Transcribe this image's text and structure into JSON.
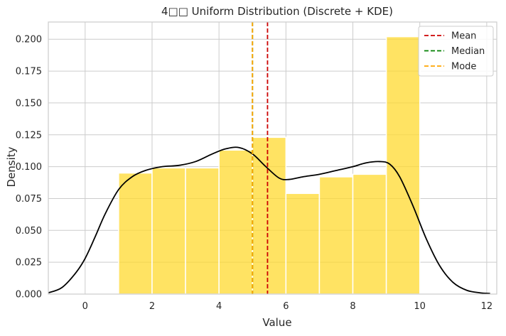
{
  "chart_data": {
    "type": "bar",
    "title": "4□□ Uniform Distribution (Discrete + KDE)",
    "xlabel": "Value",
    "ylabel": "Density",
    "xlim": [
      -1.1,
      12.3
    ],
    "ylim": [
      0,
      0.2135
    ],
    "xticks": [
      0,
      2,
      4,
      6,
      8,
      10,
      12
    ],
    "yticks": [
      0.0,
      0.025,
      0.05,
      0.075,
      0.1,
      0.125,
      0.15,
      0.175,
      0.2
    ],
    "ytick_labels": [
      "0.000",
      "0.025",
      "0.050",
      "0.075",
      "0.100",
      "0.125",
      "0.150",
      "0.175",
      "0.200"
    ],
    "grid": true,
    "legend_position": "top-right",
    "bar_color": "#ffd92f",
    "bars": [
      {
        "x0": 1,
        "x1": 2,
        "density": 0.095
      },
      {
        "x0": 2,
        "x1": 3,
        "density": 0.099
      },
      {
        "x0": 3,
        "x1": 4,
        "density": 0.099
      },
      {
        "x0": 4,
        "x1": 5,
        "density": 0.113
      },
      {
        "x0": 5,
        "x1": 6,
        "density": 0.123
      },
      {
        "x0": 6,
        "x1": 7,
        "density": 0.079
      },
      {
        "x0": 7,
        "x1": 8,
        "density": 0.092
      },
      {
        "x0": 8,
        "x1": 9,
        "density": 0.094
      },
      {
        "x0": 9,
        "x1": 10,
        "density": 0.202
      }
    ],
    "kde": {
      "color": "#000000",
      "x": [
        -1.1,
        -0.7,
        -0.3,
        0,
        0.3,
        0.6,
        1.0,
        1.4,
        1.8,
        2.3,
        2.8,
        3.3,
        3.8,
        4.2,
        4.6,
        5.0,
        5.4,
        5.8,
        6.1,
        6.5,
        7.0,
        7.5,
        8.0,
        8.4,
        8.8,
        9.1,
        9.4,
        9.8,
        10.2,
        10.6,
        11.0,
        11.4,
        11.8,
        12.1
      ],
      "y": [
        0.001,
        0.005,
        0.016,
        0.028,
        0.045,
        0.063,
        0.082,
        0.092,
        0.097,
        0.1,
        0.101,
        0.104,
        0.11,
        0.114,
        0.115,
        0.11,
        0.1,
        0.091,
        0.09,
        0.092,
        0.094,
        0.097,
        0.1,
        0.103,
        0.104,
        0.102,
        0.092,
        0.069,
        0.043,
        0.022,
        0.009,
        0.003,
        0.001,
        0.0005
      ]
    },
    "vlines": [
      {
        "name": "Mean",
        "value": 5.45,
        "color": "#cc0000"
      },
      {
        "name": "Median",
        "value": 5.0,
        "color": "#008000"
      },
      {
        "name": "Mode",
        "value": 5.0,
        "color": "#ffa500"
      }
    ]
  }
}
